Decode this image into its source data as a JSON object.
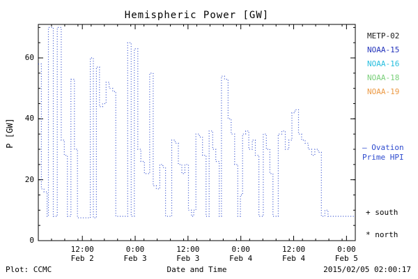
{
  "figure": {
    "title": "Hemispheric Power [GW]",
    "footer_left": "Plot: CCMC",
    "footer_center": "Date and Time",
    "footer_right": "2015/02/05 02:00:17"
  },
  "chart_data": {
    "type": "line",
    "title": "Hemispheric Power [GW]",
    "xlabel": "Date and Time",
    "ylabel": "P [GW]",
    "ylim": [
      0,
      71
    ],
    "xlim_hours": [
      0,
      72
    ],
    "x_axis_start": "Feb 2 02:00",
    "grid": false,
    "legend_position": "right-outside",
    "line_color": "#2e4bce",
    "line_style": "dotted-step",
    "x_ticks": [
      {
        "hour": 10,
        "time": "12:00",
        "date": "Feb 2"
      },
      {
        "hour": 22,
        "time": "0:00",
        "date": "Feb 3"
      },
      {
        "hour": 34,
        "time": "12:00",
        "date": "Feb 3"
      },
      {
        "hour": 46,
        "time": "0:00",
        "date": "Feb 4"
      },
      {
        "hour": 58,
        "time": "12:00",
        "date": "Feb 4"
      },
      {
        "hour": 70,
        "time": "0:00",
        "date": "Feb 5"
      }
    ],
    "y_ticks": [
      0,
      20,
      40,
      60
    ],
    "y_minor_step": 5,
    "x_minor_step_hours": 3,
    "series": [
      {
        "name": "Ovation Prime HPI",
        "color": "#2e4bce",
        "units": "GW",
        "points": [
          [
            0.0,
            58
          ],
          [
            0.7,
            17
          ],
          [
            1.3,
            16
          ],
          [
            2.0,
            8
          ],
          [
            2.3,
            70
          ],
          [
            3.4,
            8
          ],
          [
            4.3,
            70
          ],
          [
            5.2,
            33
          ],
          [
            5.9,
            28
          ],
          [
            6.6,
            8
          ],
          [
            7.4,
            53
          ],
          [
            8.2,
            30
          ],
          [
            8.9,
            7.5
          ],
          [
            11.8,
            60
          ],
          [
            12.5,
            7.5
          ],
          [
            13.2,
            57
          ],
          [
            13.9,
            44
          ],
          [
            14.6,
            45
          ],
          [
            15.4,
            52
          ],
          [
            16.1,
            50
          ],
          [
            16.9,
            49
          ],
          [
            17.6,
            8
          ],
          [
            20.3,
            65
          ],
          [
            21.1,
            8
          ],
          [
            21.8,
            63
          ],
          [
            22.6,
            30
          ],
          [
            23.3,
            26
          ],
          [
            24.1,
            22
          ],
          [
            25.3,
            55
          ],
          [
            26.1,
            18
          ],
          [
            26.8,
            17
          ],
          [
            27.6,
            25
          ],
          [
            28.3,
            24
          ],
          [
            28.9,
            8
          ],
          [
            30.3,
            33
          ],
          [
            31.1,
            32
          ],
          [
            31.8,
            25
          ],
          [
            32.6,
            22
          ],
          [
            33.3,
            25
          ],
          [
            34.1,
            10
          ],
          [
            34.8,
            8
          ],
          [
            35.3,
            10
          ],
          [
            35.8,
            35
          ],
          [
            36.6,
            34
          ],
          [
            37.3,
            28
          ],
          [
            38.1,
            8
          ],
          [
            38.8,
            36
          ],
          [
            39.6,
            30
          ],
          [
            40.3,
            26
          ],
          [
            41.1,
            8
          ],
          [
            41.6,
            54
          ],
          [
            42.3,
            53
          ],
          [
            43.1,
            40
          ],
          [
            43.8,
            35
          ],
          [
            44.6,
            25
          ],
          [
            45.3,
            8
          ],
          [
            45.9,
            15
          ],
          [
            46.4,
            35
          ],
          [
            47.1,
            36
          ],
          [
            47.8,
            30
          ],
          [
            48.6,
            33
          ],
          [
            49.3,
            28
          ],
          [
            50.1,
            8
          ],
          [
            51.1,
            35
          ],
          [
            51.8,
            30
          ],
          [
            52.6,
            22
          ],
          [
            53.3,
            8
          ],
          [
            54.5,
            35
          ],
          [
            55.3,
            36
          ],
          [
            56.1,
            30
          ],
          [
            56.9,
            33
          ],
          [
            57.6,
            42
          ],
          [
            58.3,
            43
          ],
          [
            59.1,
            35
          ],
          [
            59.8,
            33
          ],
          [
            60.6,
            32
          ],
          [
            61.3,
            30
          ],
          [
            62.1,
            28
          ],
          [
            62.8,
            30
          ],
          [
            63.6,
            29
          ],
          [
            64.3,
            8
          ],
          [
            65.1,
            10
          ],
          [
            65.8,
            8
          ],
          [
            72.0,
            8
          ]
        ]
      }
    ],
    "legend": [
      {
        "label": "METP-02",
        "color": "#1a1a1a"
      },
      {
        "label": "NOAA-15",
        "color": "#2333bb"
      },
      {
        "label": "NOAA-16",
        "color": "#26bede"
      },
      {
        "label": "NOAA-18",
        "color": "#79cf79"
      },
      {
        "label": "NOAA-19",
        "color": "#ec9a45"
      }
    ],
    "annotations": {
      "line_legend": [
        "— Ovation",
        "Prime HPI"
      ],
      "line_legend_color": "#2e4bce",
      "south_marker": "+ south",
      "north_marker": "* north"
    }
  }
}
